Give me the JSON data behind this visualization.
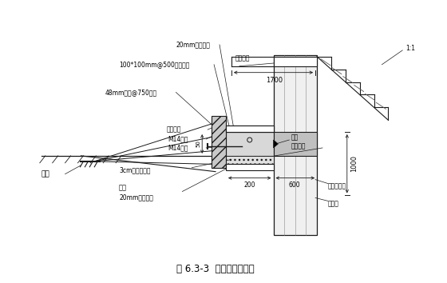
{
  "title": "图 6.3-3  圈梁施工示意图",
  "background_color": "#ffffff",
  "line_color": "#1a1a1a",
  "labels": {
    "top_board": "20mm厚竹胶板",
    "wood_support": "100*100mm@500方木支撑",
    "steel_pipe": "48mm钢管@750支撑",
    "ground_anchor": "地锚",
    "mountain_clip": "山型扣件",
    "nut": "M14螺帽",
    "bolt": "M14螺杆",
    "temp_support": "临时支撑",
    "weld": "焊接",
    "beam_bottom": "梁底标高",
    "mortar": "3cm砂浆找平层",
    "bottom_form": "底模",
    "bottom_board": "20mm厚竹胶板",
    "pile_rebar": "钻孔桩主筋",
    "pile": "钻孔桩",
    "dim_1700": "1700",
    "dim_1000": "1000",
    "dim_200": "200",
    "dim_600": "600",
    "dim_50": "50",
    "slope": "1:1"
  },
  "figsize": [
    5.6,
    3.54
  ],
  "dpi": 100
}
